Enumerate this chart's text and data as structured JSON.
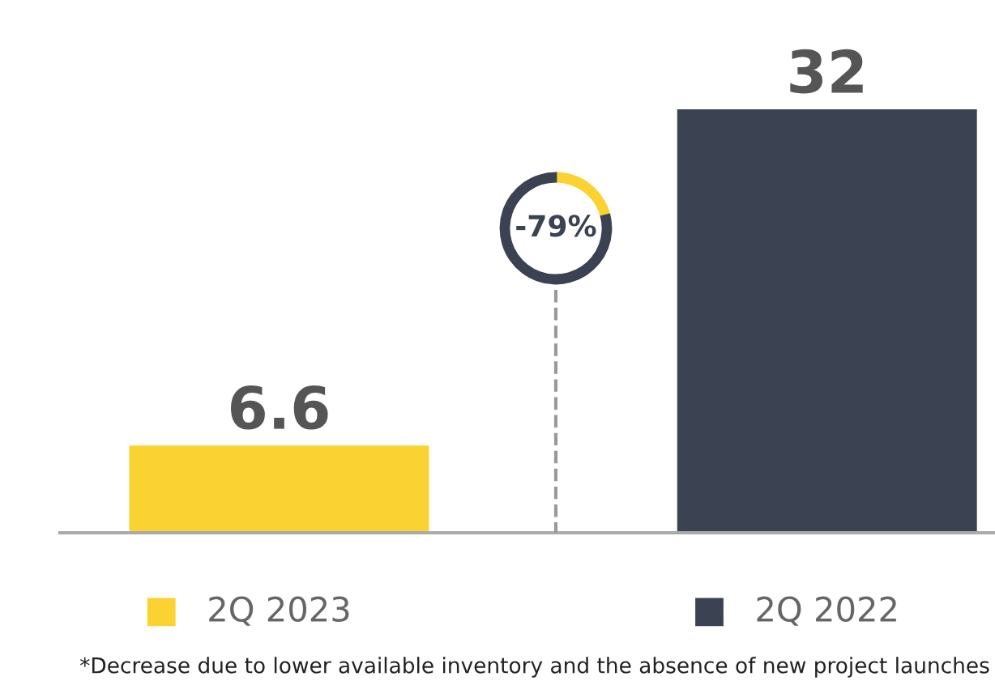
{
  "chart_data": {
    "type": "bar",
    "categories": [
      "2Q 2023",
      "2Q 2022"
    ],
    "values": [
      6.6,
      32
    ],
    "colors": [
      "#fad232",
      "#3b4252"
    ],
    "data_labels": true,
    "grid": false,
    "annotations": [
      "-79%",
      "*Decrease due to lower available inventory and the absence of new project launches"
    ]
  }
}
